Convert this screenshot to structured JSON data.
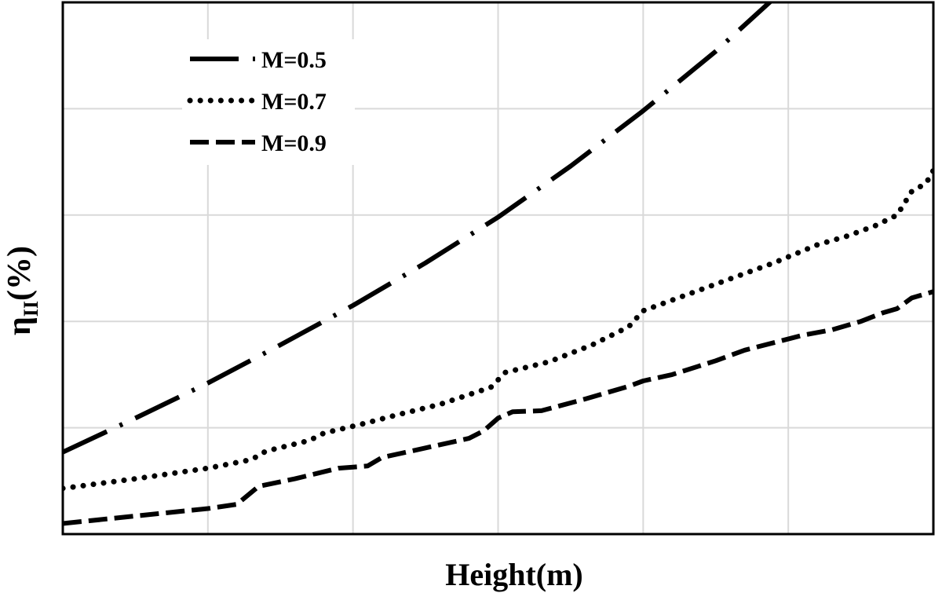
{
  "chart_data": {
    "type": "line",
    "title": "",
    "xlabel": "Height(m)",
    "ylabel_main": "η",
    "ylabel_sub": "II",
    "ylabel_tail": "(%)",
    "xlim": [
      0,
      6
    ],
    "ylim": [
      0,
      5
    ],
    "x_ticks": [
      0,
      1,
      2,
      3,
      4,
      5,
      6
    ],
    "y_ticks": [
      0,
      1,
      2,
      3,
      4,
      5
    ],
    "grid": true,
    "legend_position": "top-left",
    "colors": {
      "line": "#000000",
      "grid": "#d9d9d9",
      "frame": "#000000"
    },
    "series": [
      {
        "name": "M=0.5",
        "style": "dash-dot",
        "points": [
          [
            0.0,
            0.77
          ],
          [
            0.5,
            1.09
          ],
          [
            1.0,
            1.42
          ],
          [
            1.5,
            1.78
          ],
          [
            2.0,
            2.15
          ],
          [
            2.5,
            2.55
          ],
          [
            3.0,
            2.98
          ],
          [
            3.5,
            3.46
          ],
          [
            4.0,
            3.98
          ],
          [
            4.5,
            4.54
          ],
          [
            5.0,
            5.16
          ],
          [
            5.7,
            6.15
          ]
        ]
      },
      {
        "name": "M=0.7",
        "style": "dotted",
        "points": [
          [
            0.0,
            0.43
          ],
          [
            0.5,
            0.52
          ],
          [
            1.0,
            0.62
          ],
          [
            1.3,
            0.7
          ],
          [
            1.4,
            0.78
          ],
          [
            1.7,
            0.88
          ],
          [
            1.8,
            0.95
          ],
          [
            2.05,
            1.03
          ],
          [
            2.3,
            1.12
          ],
          [
            2.6,
            1.22
          ],
          [
            2.95,
            1.38
          ],
          [
            3.05,
            1.52
          ],
          [
            3.35,
            1.62
          ],
          [
            3.65,
            1.78
          ],
          [
            3.9,
            1.95
          ],
          [
            4.0,
            2.1
          ],
          [
            4.3,
            2.25
          ],
          [
            4.6,
            2.4
          ],
          [
            4.9,
            2.55
          ],
          [
            5.2,
            2.72
          ],
          [
            5.4,
            2.8
          ],
          [
            5.6,
            2.9
          ],
          [
            5.75,
            3.0
          ],
          [
            5.85,
            3.22
          ],
          [
            5.95,
            3.3
          ],
          [
            6.0,
            3.42
          ]
        ]
      },
      {
        "name": "M=0.9",
        "style": "dashed",
        "points": [
          [
            0.0,
            0.1
          ],
          [
            0.5,
            0.17
          ],
          [
            1.0,
            0.24
          ],
          [
            1.2,
            0.28
          ],
          [
            1.35,
            0.45
          ],
          [
            1.6,
            0.52
          ],
          [
            1.75,
            0.57
          ],
          [
            1.9,
            0.62
          ],
          [
            2.1,
            0.64
          ],
          [
            2.2,
            0.72
          ],
          [
            2.5,
            0.81
          ],
          [
            2.8,
            0.9
          ],
          [
            2.9,
            0.97
          ],
          [
            3.0,
            1.09
          ],
          [
            3.1,
            1.15
          ],
          [
            3.3,
            1.16
          ],
          [
            3.6,
            1.27
          ],
          [
            3.9,
            1.39
          ],
          [
            4.0,
            1.44
          ],
          [
            4.2,
            1.5
          ],
          [
            4.5,
            1.63
          ],
          [
            4.7,
            1.73
          ],
          [
            4.9,
            1.8
          ],
          [
            5.1,
            1.87
          ],
          [
            5.3,
            1.92
          ],
          [
            5.5,
            2.0
          ],
          [
            5.65,
            2.08
          ],
          [
            5.75,
            2.12
          ],
          [
            5.85,
            2.22
          ],
          [
            6.0,
            2.28
          ]
        ]
      }
    ]
  }
}
